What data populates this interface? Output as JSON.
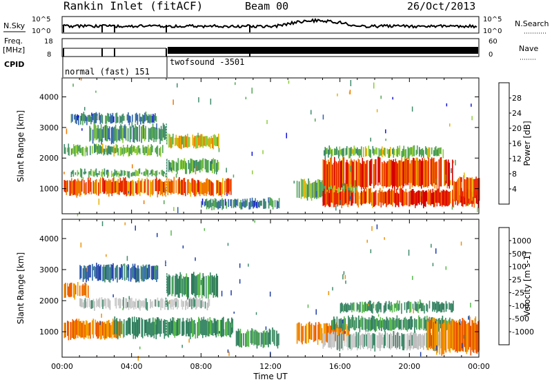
{
  "header": {
    "station": "Rankin Inlet (fitACF)",
    "beam": "Beam 00",
    "date": "26/Oct/2013"
  },
  "top_panels": {
    "noise_left_label": "N.Sky",
    "noise_left_ticks": [
      "10^5",
      "10^0"
    ],
    "noise_right_label": "N.Search",
    "noise_right_ticks": [
      "10^5",
      "10^0"
    ],
    "freq_label_line1": "Freq.",
    "freq_label_line2": "[MHz]",
    "freq_left_ticks": [
      "18",
      "8"
    ],
    "freq_right_label": "Nave",
    "freq_right_ticks": [
      "60",
      "0"
    ],
    "cpid_label": "CPID",
    "modes": [
      {
        "name": "normal (fast) 151",
        "start_hour": 0,
        "end_hour": 6
      },
      {
        "name": "twofsound -3501",
        "start_hour": 6,
        "end_hour": 24
      }
    ]
  },
  "chart_data": [
    {
      "type": "heatmap",
      "title": "Power",
      "ylabel": "Slant Range [km]",
      "xlabel": "Time UT",
      "xlim_hours": [
        0,
        24
      ],
      "x_tick_labels": [
        "00:00",
        "04:00",
        "08:00",
        "12:00",
        "16:00",
        "20:00",
        "00:00"
      ],
      "x_tick_hours": [
        0,
        4,
        8,
        12,
        16,
        20,
        24
      ],
      "ylim_km": [
        180,
        4620
      ],
      "y_ticks": [
        1000,
        2000,
        3000,
        4000
      ],
      "colorbar": {
        "label": "Power [dB]",
        "min": 0,
        "max": 32,
        "tick_labels": [
          "4",
          "8",
          "12",
          "16",
          "20",
          "24",
          "28"
        ],
        "tick_values": [
          4,
          8,
          12,
          16,
          20,
          24,
          28
        ],
        "colors": [
          "#1010e0",
          "#2e5faa",
          "#3d8a6a",
          "#52a552",
          "#8fcc3a",
          "#e8b000",
          "#f07800",
          "#e82800",
          "#d40000"
        ]
      },
      "regions": [
        {
          "t0": 0.1,
          "t1": 9.8,
          "r0": 750,
          "r1": 1350,
          "level": 24
        },
        {
          "t0": 0.5,
          "t1": 6.0,
          "r0": 1350,
          "r1": 1650,
          "level": 12
        },
        {
          "t0": 0.1,
          "t1": 5.8,
          "r0": 2050,
          "r1": 2450,
          "level": 14
        },
        {
          "t0": 1.5,
          "t1": 6.0,
          "r0": 2500,
          "r1": 3100,
          "level": 10
        },
        {
          "t0": 0.5,
          "t1": 5.5,
          "r0": 3100,
          "r1": 3500,
          "level": 8
        },
        {
          "t0": 6.0,
          "t1": 9.0,
          "r0": 2300,
          "r1": 2800,
          "level": 18
        },
        {
          "t0": 6.0,
          "t1": 9.0,
          "r0": 1500,
          "r1": 2000,
          "level": 12
        },
        {
          "t0": 8.0,
          "t1": 12.5,
          "r0": 300,
          "r1": 700,
          "level": 8
        },
        {
          "t0": 13.5,
          "t1": 17.0,
          "r0": 600,
          "r1": 1300,
          "level": 14
        },
        {
          "t0": 15.0,
          "t1": 22.5,
          "r0": 1000,
          "r1": 2000,
          "level": 26
        },
        {
          "t0": 15.0,
          "t1": 22.0,
          "r0": 2000,
          "r1": 2400,
          "level": 14
        },
        {
          "t0": 15.0,
          "t1": 24.0,
          "r0": 400,
          "r1": 1000,
          "level": 26
        },
        {
          "t0": 22.5,
          "t1": 24.0,
          "r0": 600,
          "r1": 1400,
          "level": 24
        }
      ]
    },
    {
      "type": "heatmap",
      "title": "Velocity",
      "ylabel": "Slant Range [km]",
      "xlabel": "Time UT",
      "xlim_hours": [
        0,
        24
      ],
      "x_tick_labels": [
        "00:00",
        "04:00",
        "08:00",
        "12:00",
        "16:00",
        "20:00",
        "00:00"
      ],
      "x_tick_hours": [
        0,
        4,
        8,
        12,
        16,
        20,
        24
      ],
      "ylim_km": [
        180,
        4620
      ],
      "y_ticks": [
        1000,
        2000,
        3000,
        4000
      ],
      "colorbar": {
        "label": "Velocity [m s-1]",
        "tick_labels": [
          "1000",
          "500",
          "100",
          "25",
          "-25",
          "-100",
          "-500",
          "-1000"
        ],
        "colors": [
          "#1e3ca8",
          "#2e6aa8",
          "#3d8a6a",
          "#56b84a",
          "#cccccc",
          "#f09000",
          "#f06000",
          "#e82000",
          "#e00000"
        ]
      },
      "regions": [
        {
          "t0": 0.1,
          "t1": 3.5,
          "r0": 750,
          "r1": 1400,
          "level": "orange"
        },
        {
          "t0": 3.0,
          "t1": 9.8,
          "r0": 800,
          "r1": 1450,
          "level": "green"
        },
        {
          "t0": 1.0,
          "t1": 8.5,
          "r0": 1700,
          "r1": 2100,
          "level": "gray"
        },
        {
          "t0": 0.1,
          "t1": 1.5,
          "r0": 2050,
          "r1": 2600,
          "level": "orange"
        },
        {
          "t0": 1.0,
          "t1": 5.5,
          "r0": 2600,
          "r1": 3200,
          "level": "blue"
        },
        {
          "t0": 6.0,
          "t1": 9.0,
          "r0": 2100,
          "r1": 2900,
          "level": "green"
        },
        {
          "t0": 10.0,
          "t1": 12.5,
          "r0": 500,
          "r1": 1100,
          "level": "green"
        },
        {
          "t0": 13.5,
          "t1": 16.5,
          "r0": 600,
          "r1": 1300,
          "level": "orange"
        },
        {
          "t0": 16.0,
          "t1": 22.5,
          "r0": 1600,
          "r1": 2000,
          "level": "green"
        },
        {
          "t0": 15.0,
          "t1": 22.0,
          "r0": 400,
          "r1": 1000,
          "level": "gray"
        },
        {
          "t0": 15.5,
          "t1": 22.5,
          "r0": 1000,
          "r1": 1500,
          "level": "green"
        },
        {
          "t0": 21.0,
          "t1": 24.0,
          "r0": 300,
          "r1": 1400,
          "level": "orange"
        }
      ]
    }
  ]
}
